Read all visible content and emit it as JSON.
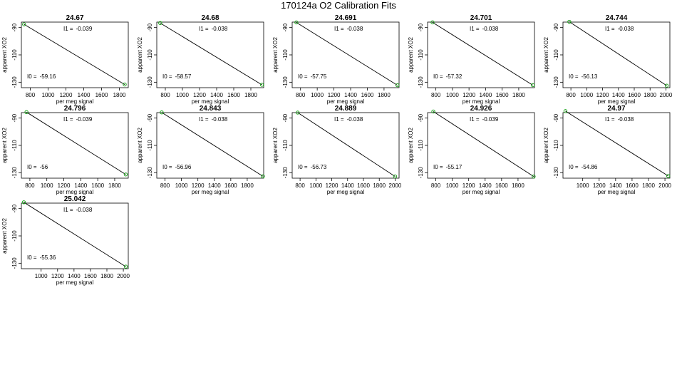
{
  "title": "170124a   O2 Calibration Fits",
  "chart_data": [
    {
      "type": "line",
      "title": "24.67",
      "xlabel": "per meg signal",
      "ylabel": "apparent XO2",
      "xlim": [
        700,
        1900
      ],
      "ylim": [
        -134,
        -86
      ],
      "xticks": [
        800,
        1000,
        1200,
        1400,
        1600,
        1800
      ],
      "yticks": [
        -90,
        -110,
        -130
      ],
      "x": [
        730,
        1860
      ],
      "y": [
        -87.63,
        -131.7
      ],
      "i0_label": "I0 =",
      "i0": "-59.16",
      "i1_label": "I1 =",
      "i1": "-0.039",
      "line_color": "#000000",
      "point_color": "#1aa31a"
    },
    {
      "type": "line",
      "title": "24.68",
      "xlabel": "per meg signal",
      "ylabel": "apparent XO2",
      "xlim": [
        700,
        1950
      ],
      "ylim": [
        -134,
        -86
      ],
      "xticks": [
        800,
        1000,
        1200,
        1400,
        1600,
        1800
      ],
      "yticks": [
        -90,
        -110,
        -130
      ],
      "x": [
        740,
        1930
      ],
      "y": [
        -86.69,
        -131.91
      ],
      "i0_label": "I0 =",
      "i0": "-58.57",
      "i1_label": "I1 =",
      "i1": "-0.038",
      "line_color": "#000000",
      "point_color": "#1aa31a"
    },
    {
      "type": "line",
      "title": "24.691",
      "xlabel": "per meg signal",
      "ylabel": "apparent XO2",
      "xlim": [
        700,
        1980
      ],
      "ylim": [
        -134,
        -86
      ],
      "xticks": [
        800,
        1000,
        1200,
        1400,
        1600,
        1800
      ],
      "yticks": [
        -90,
        -110,
        -130
      ],
      "x": [
        750,
        1960
      ],
      "y": [
        -86.25,
        -132.23
      ],
      "i0_label": "I0 =",
      "i0": "-57.75",
      "i1_label": "I1 =",
      "i1": "-0.038",
      "line_color": "#000000",
      "point_color": "#1aa31a"
    },
    {
      "type": "line",
      "title": "24.701",
      "xlabel": "per meg signal",
      "ylabel": "apparent XO2",
      "xlim": [
        700,
        1990
      ],
      "ylim": [
        -134,
        -86
      ],
      "xticks": [
        800,
        1000,
        1200,
        1400,
        1600,
        1800
      ],
      "yticks": [
        -90,
        -110,
        -130
      ],
      "x": [
        760,
        1970
      ],
      "y": [
        -86.2,
        -132.18
      ],
      "i0_label": "I0 =",
      "i0": "-57.32",
      "i1_label": "I1 =",
      "i1": "-0.038",
      "line_color": "#000000",
      "point_color": "#1aa31a"
    },
    {
      "type": "line",
      "title": "24.744",
      "xlabel": "per meg signal",
      "ylabel": "apparent XO2",
      "xlim": [
        700,
        2050
      ],
      "ylim": [
        -134,
        -86
      ],
      "xticks": [
        800,
        1000,
        1200,
        1400,
        1600,
        1800,
        2000
      ],
      "yticks": [
        -90,
        -110,
        -130
      ],
      "x": [
        780,
        2010
      ],
      "y": [
        -85.77,
        -132.51
      ],
      "i0_label": "I0 =",
      "i0": "-56.13",
      "i1_label": "I1 =",
      "i1": "-0.038",
      "line_color": "#000000",
      "point_color": "#1aa31a"
    },
    {
      "type": "line",
      "title": "24.796",
      "xlabel": "per meg signal",
      "ylabel": "apparent XO2",
      "xlim": [
        700,
        1960
      ],
      "ylim": [
        -134,
        -86
      ],
      "xticks": [
        800,
        1000,
        1200,
        1400,
        1600,
        1800
      ],
      "yticks": [
        -90,
        -110,
        -130
      ],
      "x": [
        760,
        1930
      ],
      "y": [
        -85.64,
        -131.27
      ],
      "i0_label": "I0 =",
      "i0": "-56",
      "i1_label": "I1 =",
      "i1": "-0.039",
      "line_color": "#000000",
      "point_color": "#1aa31a"
    },
    {
      "type": "line",
      "title": "24.843",
      "xlabel": "per meg signal",
      "ylabel": "apparent XO2",
      "xlim": [
        700,
        2000
      ],
      "ylim": [
        -134,
        -86
      ],
      "xticks": [
        800,
        1000,
        1200,
        1400,
        1600,
        1800
      ],
      "yticks": [
        -90,
        -110,
        -130
      ],
      "x": [
        760,
        1990
      ],
      "y": [
        -85.84,
        -132.58
      ],
      "i0_label": "I0 =",
      "i0": "-56.96",
      "i1_label": "I1 =",
      "i1": "-0.038",
      "line_color": "#000000",
      "point_color": "#1aa31a"
    },
    {
      "type": "line",
      "title": "24.889",
      "xlabel": "per meg signal",
      "ylabel": "apparent XO2",
      "xlim": [
        700,
        2050
      ],
      "ylim": [
        -134,
        -86
      ],
      "xticks": [
        800,
        1000,
        1200,
        1400,
        1600,
        1800,
        2000
      ],
      "yticks": [
        -90,
        -110,
        -130
      ],
      "x": [
        770,
        2000
      ],
      "y": [
        -85.99,
        -132.73
      ],
      "i0_label": "I0 =",
      "i0": "-56.73",
      "i1_label": "I1 =",
      "i1": "-0.038",
      "line_color": "#000000",
      "point_color": "#1aa31a"
    },
    {
      "type": "line",
      "title": "24.926",
      "xlabel": "per meg signal",
      "ylabel": "apparent XO2",
      "xlim": [
        700,
        2000
      ],
      "ylim": [
        -134,
        -86
      ],
      "xticks": [
        800,
        1000,
        1200,
        1400,
        1600,
        1800
      ],
      "yticks": [
        -90,
        -110,
        -130
      ],
      "x": [
        770,
        1990
      ],
      "y": [
        -85.2,
        -132.78
      ],
      "i0_label": "I0 =",
      "i0": "-55.17",
      "i1_label": "I1 =",
      "i1": "-0.039",
      "line_color": "#000000",
      "point_color": "#1aa31a"
    },
    {
      "type": "line",
      "title": "24.97",
      "xlabel": "per meg signal",
      "ylabel": "apparent XO2",
      "xlim": [
        760,
        2060
      ],
      "ylim": [
        -134,
        -86
      ],
      "xticks": [
        1000,
        1200,
        1400,
        1600,
        1800,
        2000
      ],
      "yticks": [
        -90,
        -110,
        -130
      ],
      "x": [
        790,
        2040
      ],
      "y": [
        -84.88,
        -132.38
      ],
      "i0_label": "I0 =",
      "i0": "-54.86",
      "i1_label": "I1 =",
      "i1": "-0.038",
      "line_color": "#000000",
      "point_color": "#1aa31a"
    },
    {
      "type": "line",
      "title": "25.042",
      "xlabel": "per meg signal",
      "ylabel": "apparent XO2",
      "xlim": [
        760,
        2060
      ],
      "ylim": [
        -134,
        -86
      ],
      "xticks": [
        1000,
        1200,
        1400,
        1600,
        1800,
        2000
      ],
      "yticks": [
        -90,
        -110,
        -130
      ],
      "x": [
        790,
        2030
      ],
      "y": [
        -85.38,
        -132.5
      ],
      "i0_label": "I0 =",
      "i0": "-55.36",
      "i1_label": "I1 =",
      "i1": "-0.038",
      "line_color": "#000000",
      "point_color": "#1aa31a"
    }
  ]
}
